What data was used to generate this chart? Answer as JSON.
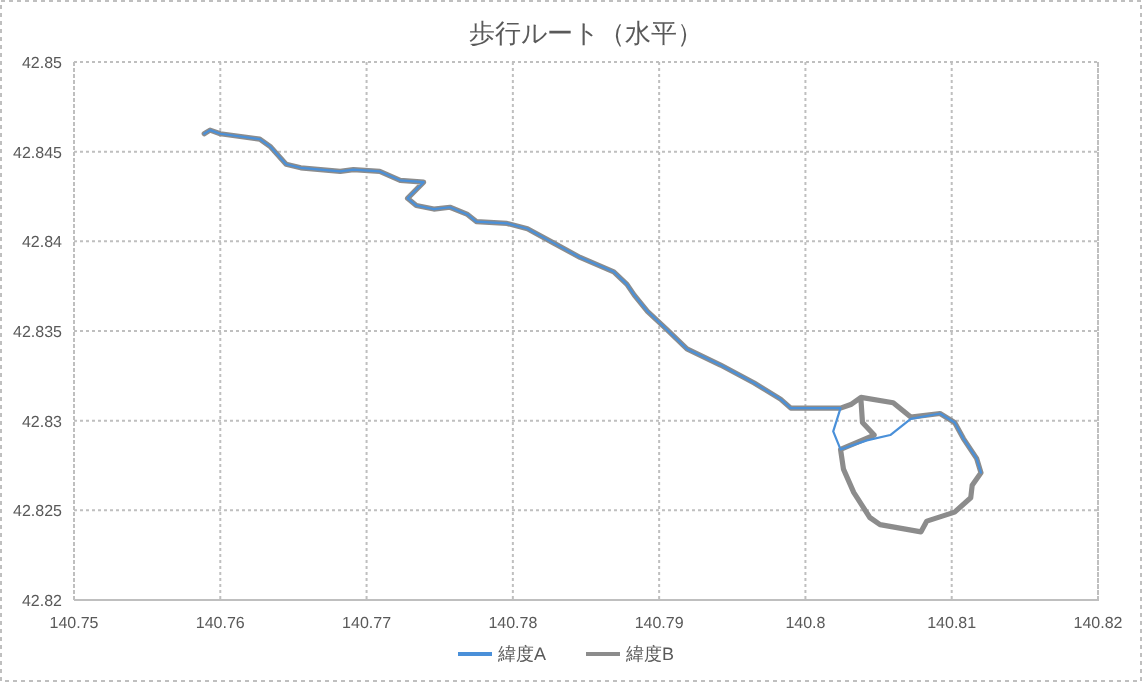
{
  "chart_data": {
    "type": "line",
    "title": "歩行ルート（水平）",
    "xlim": [
      140.75,
      140.82
    ],
    "xticks": [
      140.75,
      140.76,
      140.77,
      140.78,
      140.79,
      140.8,
      140.81,
      140.82
    ],
    "ylim": [
      42.82,
      42.85
    ],
    "yticks": [
      42.82,
      42.825,
      42.83,
      42.835,
      42.84,
      42.845,
      42.85
    ],
    "grid": true,
    "legend": "bottom",
    "series": [
      {
        "name": "緯度A",
        "color": "#4a90d9",
        "x": [
          140.7589,
          140.7593,
          140.76,
          140.7627,
          140.7634,
          140.7645,
          140.7655,
          140.7682,
          140.7691,
          140.7709,
          140.7723,
          140.7739,
          140.7728,
          140.7734,
          140.7746,
          140.7757,
          140.7769,
          140.7775,
          140.7796,
          140.781,
          140.7828,
          140.7846,
          140.7869,
          140.7878,
          140.7883,
          140.7892,
          140.7905,
          140.7919,
          140.7942,
          140.7965,
          140.7983,
          140.799,
          140.801,
          140.8024,
          140.8019,
          140.8024,
          140.8042,
          140.8058,
          140.8072,
          140.8092,
          140.8102,
          140.8108,
          140.8117,
          140.812
        ],
        "values": [
          42.846,
          42.8462,
          42.846,
          42.8457,
          42.8453,
          42.8443,
          42.8441,
          42.8439,
          42.844,
          42.8439,
          42.8434,
          42.8433,
          42.8424,
          42.842,
          42.8418,
          42.8419,
          42.8415,
          42.8411,
          42.841,
          42.8407,
          42.8399,
          42.8391,
          42.8383,
          42.8376,
          42.837,
          42.8361,
          42.8351,
          42.834,
          42.8331,
          42.8321,
          42.8312,
          42.8307,
          42.8307,
          42.8307,
          42.8294,
          42.8284,
          42.8289,
          42.8292,
          42.8301,
          42.8304,
          42.8299,
          42.829,
          42.8279,
          42.8271
        ]
      },
      {
        "name": "緯度B",
        "color": "#8c8c8c",
        "x": [
          140.7589,
          140.7593,
          140.76,
          140.7627,
          140.7634,
          140.7645,
          140.7655,
          140.7682,
          140.7691,
          140.7709,
          140.7723,
          140.7739,
          140.7728,
          140.7734,
          140.7746,
          140.7757,
          140.7769,
          140.7775,
          140.7796,
          140.781,
          140.7828,
          140.7846,
          140.7869,
          140.7878,
          140.7883,
          140.7892,
          140.7905,
          140.7919,
          140.7942,
          140.7965,
          140.7983,
          140.799,
          140.801,
          140.8024,
          140.8031,
          140.8038,
          140.806,
          140.8072,
          140.8092,
          140.8102,
          140.8108,
          140.8117,
          140.812,
          140.8114,
          140.8113,
          140.8102,
          140.8083,
          140.8079,
          140.8051,
          140.8044,
          140.8033,
          140.8026,
          140.8024,
          140.8047,
          140.8039,
          140.8038
        ],
        "values": [
          42.846,
          42.8462,
          42.846,
          42.8457,
          42.8453,
          42.8443,
          42.8441,
          42.8439,
          42.844,
          42.8439,
          42.8434,
          42.8433,
          42.8424,
          42.842,
          42.8418,
          42.8419,
          42.8415,
          42.8411,
          42.841,
          42.8407,
          42.8399,
          42.8391,
          42.8383,
          42.8376,
          42.837,
          42.8361,
          42.8351,
          42.834,
          42.8331,
          42.8321,
          42.8312,
          42.8307,
          42.8307,
          42.8307,
          42.8309,
          42.8313,
          42.831,
          42.8302,
          42.8304,
          42.8299,
          42.829,
          42.8279,
          42.8271,
          42.8264,
          42.8257,
          42.8249,
          42.8244,
          42.8238,
          42.8242,
          42.8246,
          42.826,
          42.8273,
          42.8284,
          42.8292,
          42.8299,
          42.8311
        ]
      }
    ]
  }
}
